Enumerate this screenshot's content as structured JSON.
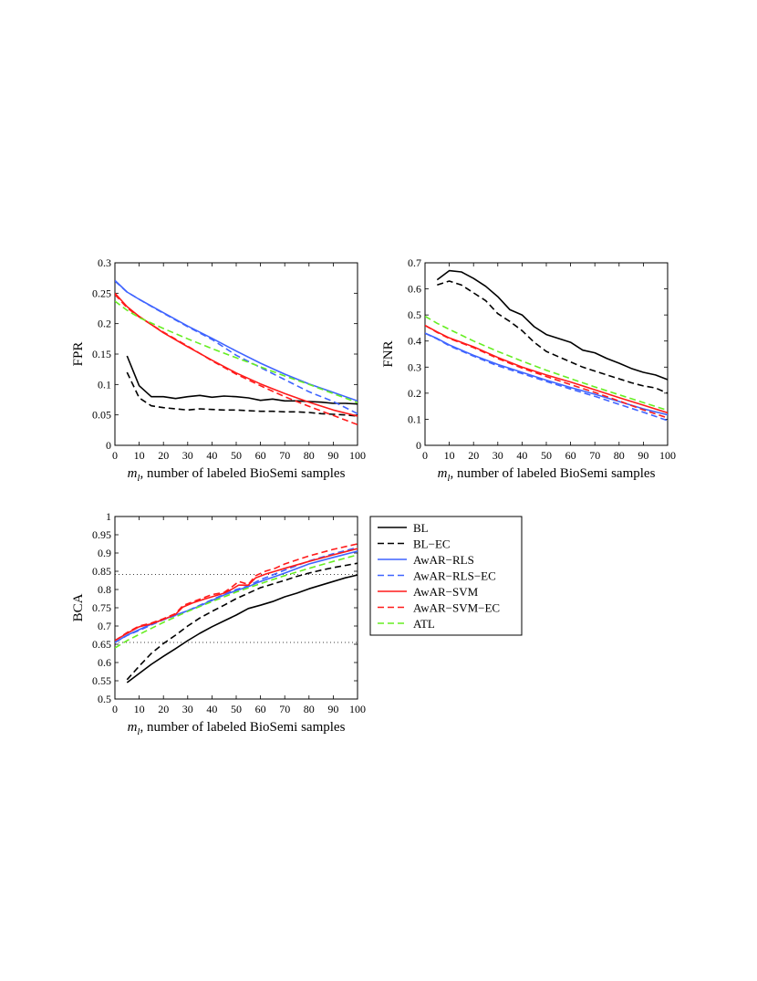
{
  "chart_data": [
    {
      "id": "fpr",
      "type": "line",
      "title": "",
      "xlabel_var": "m",
      "xlabel_sub": "l",
      "xlabel_rest": ", number of labeled BioSemi samples",
      "ylabel": "FPR",
      "xlim": [
        0,
        100
      ],
      "ylim": [
        0,
        0.3
      ],
      "xticks": [
        "0",
        "10",
        "20",
        "30",
        "40",
        "50",
        "60",
        "70",
        "80",
        "90",
        "100"
      ],
      "yticks": [
        "0",
        "0.05",
        "0.1",
        "0.15",
        "0.2",
        "0.25",
        "0.3"
      ],
      "series": [
        {
          "name": "BL",
          "x": [
            5,
            10,
            15,
            20,
            25,
            30,
            35,
            40,
            45,
            50,
            55,
            60,
            65,
            70,
            75,
            80,
            85,
            90,
            95,
            100
          ],
          "values": [
            0.147,
            0.098,
            0.08,
            0.08,
            0.077,
            0.08,
            0.082,
            0.079,
            0.081,
            0.08,
            0.078,
            0.074,
            0.076,
            0.073,
            0.073,
            0.072,
            0.071,
            0.069,
            0.069,
            0.068
          ]
        },
        {
          "name": "BL-EC",
          "x": [
            5,
            10,
            15,
            20,
            25,
            30,
            35,
            40,
            45,
            50,
            55,
            60,
            65,
            70,
            75,
            80,
            85,
            90,
            95,
            100
          ],
          "values": [
            0.12,
            0.078,
            0.065,
            0.062,
            0.06,
            0.058,
            0.06,
            0.059,
            0.058,
            0.058,
            0.057,
            0.056,
            0.056,
            0.055,
            0.055,
            0.054,
            0.052,
            0.051,
            0.05,
            0.048
          ]
        },
        {
          "name": "AwAR-RLS",
          "x": [
            0,
            5,
            10,
            20,
            30,
            40,
            50,
            60,
            70,
            80,
            90,
            100
          ],
          "values": [
            0.271,
            0.252,
            0.24,
            0.218,
            0.196,
            0.176,
            0.155,
            0.135,
            0.117,
            0.101,
            0.087,
            0.073
          ]
        },
        {
          "name": "AwAR-RLS-EC",
          "x": [
            0,
            5,
            10,
            20,
            30,
            40,
            50,
            60,
            70,
            80,
            90,
            100
          ],
          "values": [
            0.27,
            0.252,
            0.24,
            0.217,
            0.195,
            0.174,
            0.148,
            0.128,
            0.108,
            0.088,
            0.072,
            0.052
          ]
        },
        {
          "name": "AwAR-SVM",
          "x": [
            0,
            5,
            10,
            20,
            30,
            40,
            50,
            60,
            70,
            80,
            90,
            100
          ],
          "values": [
            0.25,
            0.228,
            0.212,
            0.185,
            0.162,
            0.14,
            0.119,
            0.101,
            0.085,
            0.071,
            0.058,
            0.048
          ]
        },
        {
          "name": "AwAR-SVM-EC",
          "x": [
            0,
            5,
            10,
            20,
            30,
            40,
            50,
            60,
            70,
            80,
            90,
            100
          ],
          "values": [
            0.248,
            0.226,
            0.211,
            0.186,
            0.163,
            0.139,
            0.117,
            0.098,
            0.08,
            0.064,
            0.049,
            0.034
          ]
        },
        {
          "name": "ATL",
          "x": [
            0,
            5,
            10,
            20,
            30,
            40,
            50,
            60,
            70,
            80,
            90,
            100
          ],
          "values": [
            0.237,
            0.222,
            0.21,
            0.192,
            0.175,
            0.159,
            0.144,
            0.129,
            0.114,
            0.1,
            0.085,
            0.07
          ]
        }
      ]
    },
    {
      "id": "fnr",
      "type": "line",
      "title": "",
      "xlabel_var": "m",
      "xlabel_sub": "l",
      "xlabel_rest": ", number of labeled BioSemi samples",
      "ylabel": "FNR",
      "xlim": [
        0,
        100
      ],
      "ylim": [
        0,
        0.7
      ],
      "xticks": [
        "0",
        "10",
        "20",
        "30",
        "40",
        "50",
        "60",
        "70",
        "80",
        "90",
        "100"
      ],
      "yticks": [
        "0",
        "0.1",
        "0.2",
        "0.3",
        "0.4",
        "0.5",
        "0.6",
        "0.7"
      ],
      "series": [
        {
          "name": "BL",
          "x": [
            5,
            10,
            15,
            20,
            25,
            30,
            35,
            40,
            45,
            50,
            55,
            60,
            65,
            70,
            75,
            80,
            85,
            90,
            95,
            100
          ],
          "values": [
            0.635,
            0.67,
            0.665,
            0.64,
            0.61,
            0.57,
            0.52,
            0.5,
            0.455,
            0.425,
            0.41,
            0.395,
            0.365,
            0.355,
            0.333,
            0.315,
            0.295,
            0.28,
            0.27,
            0.252
          ]
        },
        {
          "name": "BL-EC",
          "x": [
            5,
            10,
            15,
            20,
            25,
            30,
            35,
            40,
            45,
            50,
            55,
            60,
            65,
            70,
            75,
            80,
            85,
            90,
            95,
            100
          ],
          "values": [
            0.615,
            0.63,
            0.615,
            0.585,
            0.555,
            0.505,
            0.475,
            0.44,
            0.395,
            0.36,
            0.34,
            0.32,
            0.3,
            0.285,
            0.27,
            0.255,
            0.24,
            0.228,
            0.22,
            0.2
          ]
        },
        {
          "name": "AwAR-RLS",
          "x": [
            0,
            5,
            10,
            20,
            30,
            40,
            50,
            60,
            70,
            80,
            90,
            100
          ],
          "values": [
            0.43,
            0.41,
            0.385,
            0.345,
            0.31,
            0.28,
            0.25,
            0.222,
            0.196,
            0.168,
            0.14,
            0.117
          ]
        },
        {
          "name": "AwAR-RLS-EC",
          "x": [
            0,
            5,
            10,
            20,
            30,
            40,
            50,
            60,
            70,
            80,
            90,
            100
          ],
          "values": [
            0.43,
            0.408,
            0.382,
            0.342,
            0.305,
            0.275,
            0.245,
            0.216,
            0.188,
            0.157,
            0.127,
            0.095
          ]
        },
        {
          "name": "AwAR-SVM",
          "x": [
            0,
            5,
            10,
            20,
            30,
            40,
            50,
            60,
            70,
            80,
            90,
            100
          ],
          "values": [
            0.46,
            0.435,
            0.412,
            0.378,
            0.337,
            0.3,
            0.27,
            0.243,
            0.213,
            0.183,
            0.154,
            0.125
          ]
        },
        {
          "name": "AwAR-SVM-EC",
          "x": [
            0,
            5,
            10,
            20,
            30,
            40,
            50,
            60,
            70,
            80,
            90,
            100
          ],
          "values": [
            0.46,
            0.433,
            0.41,
            0.375,
            0.333,
            0.296,
            0.264,
            0.233,
            0.203,
            0.17,
            0.136,
            0.105
          ]
        },
        {
          "name": "ATL",
          "x": [
            0,
            5,
            10,
            20,
            30,
            40,
            50,
            60,
            70,
            80,
            90,
            100
          ],
          "values": [
            0.495,
            0.468,
            0.445,
            0.4,
            0.36,
            0.323,
            0.288,
            0.256,
            0.224,
            0.194,
            0.164,
            0.134
          ]
        }
      ]
    },
    {
      "id": "bca",
      "type": "line",
      "title": "",
      "xlabel_var": "m",
      "xlabel_sub": "l",
      "xlabel_rest": ", number of labeled BioSemi samples",
      "ylabel": "BCA",
      "xlim": [
        0,
        100
      ],
      "ylim": [
        0.5,
        1
      ],
      "xticks": [
        "0",
        "10",
        "20",
        "30",
        "40",
        "50",
        "60",
        "70",
        "80",
        "90",
        "100"
      ],
      "yticks": [
        "0.5",
        "0.55",
        "0.6",
        "0.65",
        "0.7",
        "0.75",
        "0.8",
        "0.85",
        "0.9",
        "0.95",
        "1"
      ],
      "hlines": [
        0.841,
        0.655
      ],
      "series": [
        {
          "name": "BL",
          "x": [
            5,
            10,
            15,
            20,
            25,
            30,
            35,
            40,
            45,
            50,
            55,
            60,
            65,
            70,
            75,
            80,
            85,
            90,
            95,
            100
          ],
          "values": [
            0.545,
            0.57,
            0.595,
            0.617,
            0.638,
            0.66,
            0.68,
            0.698,
            0.714,
            0.73,
            0.748,
            0.757,
            0.767,
            0.78,
            0.79,
            0.802,
            0.812,
            0.822,
            0.832,
            0.84
          ]
        },
        {
          "name": "BL-EC",
          "x": [
            5,
            10,
            15,
            20,
            25,
            30,
            35,
            40,
            45,
            50,
            55,
            60,
            65,
            70,
            75,
            80,
            85,
            90,
            95,
            100
          ],
          "values": [
            0.553,
            0.59,
            0.625,
            0.652,
            0.675,
            0.7,
            0.722,
            0.74,
            0.757,
            0.775,
            0.79,
            0.805,
            0.815,
            0.825,
            0.836,
            0.845,
            0.853,
            0.86,
            0.866,
            0.872
          ]
        },
        {
          "name": "AwAR-RLS",
          "x": [
            0,
            5,
            10,
            15,
            20,
            25,
            30,
            35,
            40,
            45,
            50,
            55,
            60,
            70,
            80,
            90,
            100
          ],
          "values": [
            0.655,
            0.675,
            0.69,
            0.705,
            0.718,
            0.73,
            0.742,
            0.755,
            0.77,
            0.785,
            0.797,
            0.808,
            0.822,
            0.845,
            0.87,
            0.888,
            0.905
          ]
        },
        {
          "name": "AwAR-RLS-EC",
          "x": [
            0,
            5,
            10,
            15,
            20,
            25,
            30,
            35,
            40,
            45,
            50,
            55,
            60,
            70,
            80,
            90,
            100
          ],
          "values": [
            0.655,
            0.674,
            0.688,
            0.703,
            0.717,
            0.729,
            0.742,
            0.757,
            0.772,
            0.787,
            0.8,
            0.81,
            0.827,
            0.853,
            0.878,
            0.898,
            0.915
          ]
        },
        {
          "name": "AwAR-SVM",
          "x": [
            0,
            5,
            10,
            15,
            20,
            25,
            28,
            32,
            36,
            40,
            45,
            48,
            51,
            55,
            58,
            62,
            66,
            70,
            80,
            90,
            100
          ],
          "values": [
            0.66,
            0.68,
            0.698,
            0.706,
            0.718,
            0.732,
            0.752,
            0.763,
            0.772,
            0.78,
            0.79,
            0.8,
            0.812,
            0.812,
            0.832,
            0.842,
            0.85,
            0.858,
            0.877,
            0.895,
            0.912
          ]
        },
        {
          "name": "AwAR-SVM-EC",
          "x": [
            0,
            5,
            10,
            15,
            20,
            25,
            28,
            32,
            36,
            40,
            45,
            48,
            51,
            55,
            58,
            62,
            66,
            70,
            80,
            90,
            100
          ],
          "values": [
            0.66,
            0.682,
            0.7,
            0.708,
            0.72,
            0.734,
            0.756,
            0.766,
            0.776,
            0.786,
            0.792,
            0.806,
            0.822,
            0.814,
            0.838,
            0.85,
            0.858,
            0.87,
            0.892,
            0.91,
            0.925
          ]
        },
        {
          "name": "ATL",
          "x": [
            0,
            5,
            10,
            20,
            30,
            40,
            50,
            60,
            70,
            80,
            90,
            100
          ],
          "values": [
            0.64,
            0.66,
            0.677,
            0.71,
            0.74,
            0.767,
            0.793,
            0.816,
            0.838,
            0.858,
            0.877,
            0.895
          ]
        }
      ]
    }
  ],
  "legend": {
    "placement": "right of BCA panel",
    "entries": [
      {
        "name": "BL",
        "label": "BL",
        "color": "#000000",
        "dash": false
      },
      {
        "name": "BL-EC",
        "label": "BL−EC",
        "color": "#000000",
        "dash": true
      },
      {
        "name": "AwAR-RLS",
        "label": "AwAR−RLS",
        "color": "#3f64ff",
        "dash": false
      },
      {
        "name": "AwAR-RLS-EC",
        "label": "AwAR−RLS−EC",
        "color": "#3f64ff",
        "dash": true
      },
      {
        "name": "AwAR-SVM",
        "label": "AwAR−SVM",
        "color": "#ff1a1a",
        "dash": false
      },
      {
        "name": "AwAR-SVM-EC",
        "label": "AwAR−SVM−EC",
        "color": "#ff1a1a",
        "dash": true
      },
      {
        "name": "ATL",
        "label": "ATL",
        "color": "#66ee22",
        "dash": true
      }
    ]
  }
}
